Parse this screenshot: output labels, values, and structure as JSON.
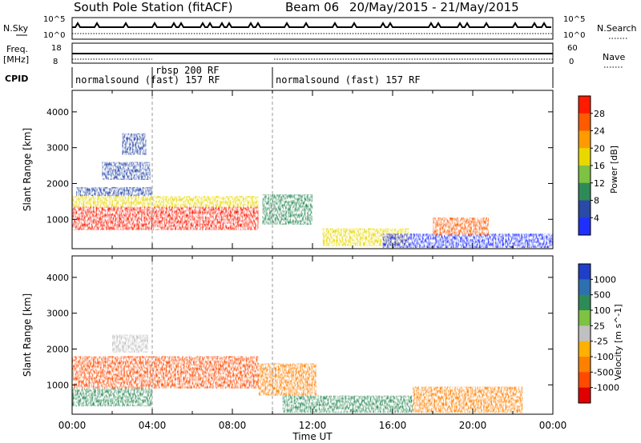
{
  "header": {
    "station": "South Pole Station (fitACF)",
    "beam": "Beam 06",
    "date_range": "20/May/2015 - 21/May/2015"
  },
  "top_panels": {
    "nsky_label": "N.Sky",
    "nsky_tick_hi": "10^5",
    "nsky_tick_lo": "10^0",
    "nsearch_label": "N.Search",
    "nsearch_tick_hi": "10^5",
    "nsearch_tick_lo": "10^0",
    "freq_label": "Freq.",
    "freq_unit": "[MHz]",
    "freq_tick_hi": "18",
    "freq_tick_lo": "8",
    "nave_label": "Nave",
    "nave_tick_hi": "60",
    "nave_tick_lo": "0",
    "cpid_label": "CPID",
    "cpid_segments": [
      {
        "start": 0,
        "end": 4,
        "text": "normalsound (fast) 157 RF"
      },
      {
        "start": 4,
        "end": 10,
        "text": "rbsp 200 RF"
      },
      {
        "start": 10,
        "end": 24,
        "text": "normalsound (fast) 157 RF"
      }
    ]
  },
  "x_axis": {
    "title": "Time UT",
    "ticks": [
      "00:00",
      "04:00",
      "08:00",
      "12:00",
      "16:00",
      "20:00",
      "00:00"
    ]
  },
  "chart_data": [
    {
      "type": "heatmap",
      "name": "power",
      "ylabel": "Slant Range [km]",
      "yticks": [
        1000,
        2000,
        3000,
        4000
      ],
      "ylim": [
        180,
        4600
      ],
      "xlim_hours": [
        0,
        24
      ],
      "colorbar": {
        "title": "Power [dB]",
        "ticks": [
          "4",
          "8",
          "12",
          "16",
          "20",
          "24",
          "28"
        ],
        "colors": [
          "#1f2fff",
          "#2a4aa8",
          "#2e8b57",
          "#7dc242",
          "#e8d800",
          "#ff9b00",
          "#ff5a00",
          "#ff1a00"
        ]
      },
      "regions": [
        {
          "t0": 0.0,
          "t1": 9.3,
          "r0": 700,
          "r1": 1350,
          "level": 7
        },
        {
          "t0": 0.0,
          "t1": 9.3,
          "r0": 1350,
          "r1": 1650,
          "level": 4
        },
        {
          "t0": 0.2,
          "t1": 4.0,
          "r0": 1650,
          "r1": 1900,
          "level": 1
        },
        {
          "t0": 1.5,
          "t1": 3.9,
          "r0": 2100,
          "r1": 2600,
          "level": 1
        },
        {
          "t0": 2.5,
          "t1": 3.7,
          "r0": 2800,
          "r1": 3400,
          "level": 1
        },
        {
          "t0": 9.5,
          "t1": 12.0,
          "r0": 850,
          "r1": 1700,
          "level": 2
        },
        {
          "t0": 12.5,
          "t1": 16.8,
          "r0": 250,
          "r1": 750,
          "level": 4
        },
        {
          "t0": 15.5,
          "t1": 24.0,
          "r0": 200,
          "r1": 600,
          "level": 0
        },
        {
          "t0": 18.0,
          "t1": 20.8,
          "r0": 550,
          "r1": 1050,
          "level": 6
        }
      ]
    },
    {
      "type": "heatmap",
      "name": "velocity",
      "ylabel": "Slant Range [km]",
      "yticks": [
        1000,
        2000,
        3000,
        4000
      ],
      "ylim": [
        180,
        4600
      ],
      "xlim_hours": [
        0,
        24
      ],
      "colorbar": {
        "title": "Velocity [m s^-1]",
        "ticks": [
          "1000",
          "500",
          "100",
          "25",
          "-25",
          "-100",
          "-500",
          "-1000"
        ],
        "colors": [
          "#1f3fc8",
          "#2e6fb0",
          "#2e8b57",
          "#7dc242",
          "#c0c0c0",
          "#ffb000",
          "#ff8000",
          "#ff4a00",
          "#e00000"
        ]
      },
      "regions": [
        {
          "t0": 0.0,
          "t1": 9.3,
          "r0": 900,
          "r1": 1800,
          "level": 7
        },
        {
          "t0": 0.0,
          "t1": 4.0,
          "r0": 400,
          "r1": 900,
          "level": 2
        },
        {
          "t0": 2.0,
          "t1": 3.8,
          "r0": 1900,
          "r1": 2400,
          "level": 4
        },
        {
          "t0": 9.3,
          "t1": 12.2,
          "r0": 700,
          "r1": 1600,
          "level": 6
        },
        {
          "t0": 10.5,
          "t1": 17.0,
          "r0": 220,
          "r1": 700,
          "level": 2
        },
        {
          "t0": 17.0,
          "t1": 22.5,
          "r0": 220,
          "r1": 950,
          "level": 6
        }
      ]
    }
  ]
}
